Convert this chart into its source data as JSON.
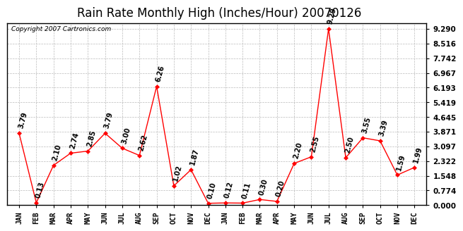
{
  "title": "Rain Rate Monthly High (Inches/Hour) 20070126",
  "copyright": "Copyright 2007 Cartronics.com",
  "months": [
    "JAN",
    "FEB",
    "MAR",
    "APR",
    "MAY",
    "JUN",
    "JUL",
    "AUG",
    "SEP",
    "OCT",
    "NOV",
    "DEC",
    "JAN",
    "FEB",
    "MAR",
    "APR",
    "MAY",
    "JUN",
    "JUL",
    "AUG",
    "SEP",
    "OCT",
    "NOV",
    "DEC"
  ],
  "values": [
    3.79,
    0.13,
    2.1,
    2.74,
    2.85,
    3.79,
    3.0,
    2.62,
    6.26,
    1.02,
    1.87,
    0.1,
    0.12,
    0.11,
    0.3,
    0.2,
    2.2,
    2.55,
    9.29,
    2.5,
    3.55,
    3.39,
    1.59,
    1.99
  ],
  "yticks": [
    0.0,
    0.774,
    1.548,
    2.322,
    3.097,
    3.871,
    4.645,
    5.419,
    6.193,
    6.967,
    7.742,
    8.516,
    9.29
  ],
  "line_color": "#ff0000",
  "marker_color": "#ff0000",
  "bg_color": "#ffffff",
  "grid_color": "#bbbbbb",
  "title_fontsize": 12,
  "annotation_fontsize": 7,
  "ylim_max": 9.6
}
